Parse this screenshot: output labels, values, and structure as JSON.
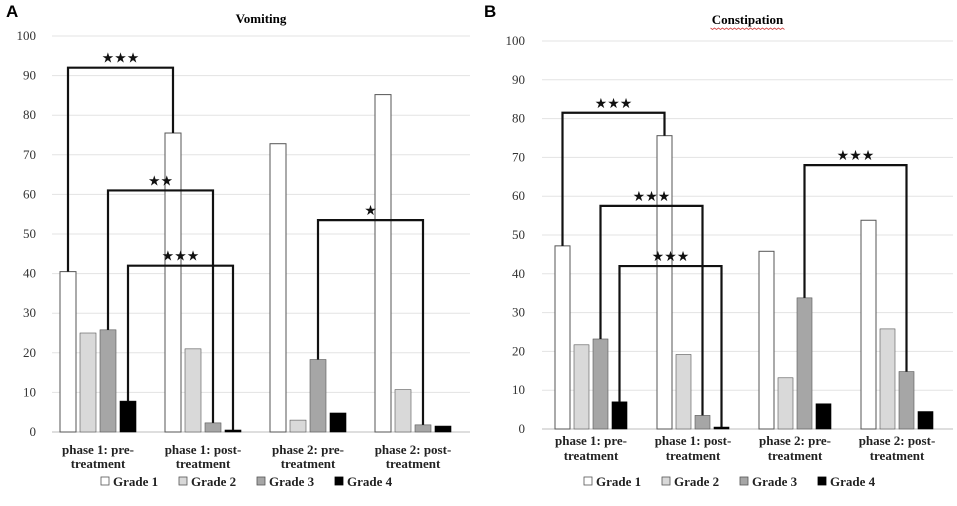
{
  "chart_data": [
    {
      "type": "bar",
      "panel": "A",
      "title": "Vomiting",
      "categories": [
        [
          "phase 1: pre-",
          "treatment"
        ],
        [
          "phase 1: post-",
          "treatment"
        ],
        [
          "phase 2: pre-",
          "treatment"
        ],
        [
          "phase 2: post-",
          "treatment"
        ]
      ],
      "series": [
        {
          "name": "Grade 1",
          "color": "#ffffff",
          "values": [
            40.5,
            75.5,
            72.8,
            85.2
          ]
        },
        {
          "name": "Grade 2",
          "color": "#d9d9d9",
          "values": [
            25,
            21,
            3,
            10.7
          ]
        },
        {
          "name": "Grade 3",
          "color": "#a6a6a6",
          "values": [
            25.8,
            2.3,
            18.3,
            1.8
          ]
        },
        {
          "name": "Grade 4",
          "color": "#000000",
          "values": [
            7.8,
            0.5,
            4.8,
            1.5
          ]
        }
      ],
      "ylim": [
        0,
        100
      ],
      "yticks": [
        0,
        10,
        20,
        30,
        40,
        50,
        60,
        70,
        80,
        90,
        100
      ],
      "significance": [
        {
          "label": "★★★",
          "from": [
            0,
            0
          ],
          "to": [
            1,
            0
          ],
          "height": 92
        },
        {
          "label": "★★",
          "from": [
            0,
            2
          ],
          "to": [
            1,
            2
          ],
          "height": 61
        },
        {
          "label": "★★★",
          "from": [
            0,
            3
          ],
          "to": [
            1,
            3
          ],
          "height": 42
        },
        {
          "label": "★",
          "from": [
            2,
            2
          ],
          "to": [
            3,
            2
          ],
          "height": 53.5
        }
      ]
    },
    {
      "type": "bar",
      "panel": "B",
      "title": "Constipation",
      "categories": [
        [
          "phase 1: pre-",
          "treatment"
        ],
        [
          "phase 1: post-",
          "treatment"
        ],
        [
          "phase 2: pre-",
          "treatment"
        ],
        [
          "phase 2: post-",
          "treatment"
        ]
      ],
      "series": [
        {
          "name": "Grade 1",
          "color": "#ffffff",
          "values": [
            47.2,
            75.6,
            45.8,
            53.8
          ]
        },
        {
          "name": "Grade 2",
          "color": "#d9d9d9",
          "values": [
            21.7,
            19.2,
            13.2,
            25.8
          ]
        },
        {
          "name": "Grade 3",
          "color": "#a6a6a6",
          "values": [
            23.2,
            3.5,
            33.8,
            14.8
          ]
        },
        {
          "name": "Grade 4",
          "color": "#000000",
          "values": [
            7,
            0.5,
            6.5,
            4.5
          ]
        }
      ],
      "ylim": [
        0,
        100
      ],
      "yticks": [
        0,
        10,
        20,
        30,
        40,
        50,
        60,
        70,
        80,
        90,
        100
      ],
      "significance": [
        {
          "label": "★★★",
          "from": [
            0,
            0
          ],
          "to": [
            1,
            0
          ],
          "height": 81.5
        },
        {
          "label": "★★★",
          "from": [
            0,
            2
          ],
          "to": [
            1,
            2
          ],
          "height": 57.5
        },
        {
          "label": "★★★",
          "from": [
            0,
            3
          ],
          "to": [
            1,
            3
          ],
          "height": 42
        },
        {
          "label": "★★★",
          "from": [
            2,
            2
          ],
          "to": [
            3,
            2
          ],
          "height": 68
        }
      ]
    }
  ]
}
